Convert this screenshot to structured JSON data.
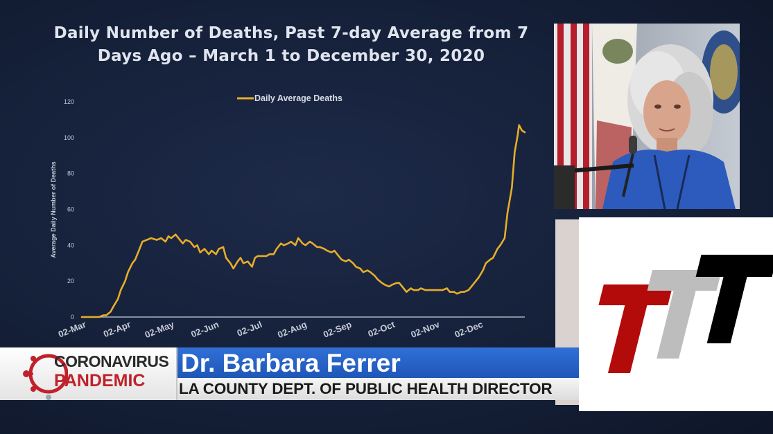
{
  "chart_data": {
    "type": "line",
    "title": "Daily Number of Deaths, Past 7-day Average from 7 Days Ago – March 1 to December 30, 2020",
    "ylabel": "Average Daily Number of Deaths",
    "xlabel": "",
    "ylim": [
      0,
      120
    ],
    "yticks": [
      "0",
      "20",
      "40",
      "60",
      "80",
      "100",
      "120"
    ],
    "xticks": [
      {
        "label": "02-Mar",
        "day": 1
      },
      {
        "label": "02-Apr",
        "day": 32
      },
      {
        "label": "02-May",
        "day": 62
      },
      {
        "label": "02-Jun",
        "day": 93
      },
      {
        "label": "02-Jul",
        "day": 123
      },
      {
        "label": "02-Aug",
        "day": 154
      },
      {
        "label": "02-Sep",
        "day": 185
      },
      {
        "label": "02-Oct",
        "day": 215
      },
      {
        "label": "02-Nov",
        "day": 246
      },
      {
        "label": "02-Dec",
        "day": 276
      }
    ],
    "grid": false,
    "legend_position": "top-center",
    "series": [
      {
        "name": "Daily Average Deaths",
        "color": "#e8ad2a",
        "x": [
          0,
          8,
          12,
          15,
          17,
          20,
          22,
          25,
          27,
          30,
          32,
          35,
          37,
          40,
          42,
          45,
          48,
          52,
          55,
          58,
          60,
          62,
          65,
          68,
          70,
          72,
          75,
          78,
          80,
          82,
          85,
          88,
          90,
          93,
          95,
          98,
          100,
          103,
          105,
          108,
          110,
          112,
          115,
          118,
          120,
          122,
          125,
          128,
          130,
          133,
          135,
          138,
          140,
          143,
          145,
          148,
          150,
          153,
          155,
          158,
          160,
          163,
          165,
          168,
          170,
          173,
          175,
          178,
          180,
          183,
          185,
          188,
          190,
          193,
          195,
          198,
          200,
          203,
          205,
          208,
          210,
          213,
          215,
          218,
          220,
          223,
          225,
          228,
          230,
          233,
          235,
          238,
          240,
          243,
          245,
          248,
          250,
          253,
          255,
          258,
          260,
          263,
          265,
          268,
          270,
          273,
          275,
          278,
          280,
          283,
          285,
          288,
          290,
          293,
          295,
          298,
          300,
          302,
          303,
          305,
          307
        ],
        "y": [
          0,
          0,
          0,
          1,
          1,
          3,
          6,
          10,
          15,
          20,
          25,
          30,
          32,
          38,
          42,
          43,
          44,
          43,
          44,
          42,
          45,
          44,
          46,
          43,
          41,
          43,
          42,
          39,
          40,
          36,
          38,
          35,
          37,
          35,
          38,
          39,
          33,
          30,
          27,
          31,
          33,
          30,
          31,
          28,
          33,
          34,
          34,
          34,
          35,
          35,
          38,
          41,
          40,
          41,
          42,
          40,
          44,
          41,
          40,
          42,
          41,
          39,
          39,
          38,
          37,
          36,
          37,
          34,
          32,
          31,
          32,
          30,
          28,
          27,
          25,
          26,
          25,
          23,
          21,
          19,
          18,
          17,
          18,
          19,
          19,
          16,
          14,
          16,
          15,
          15,
          16,
          15,
          15,
          15,
          15,
          15,
          15,
          16,
          14,
          14,
          13,
          14,
          14,
          15,
          17,
          20,
          22,
          26,
          30,
          32,
          33,
          38,
          40,
          44,
          58,
          72,
          92,
          101,
          107,
          104,
          103
        ]
      }
    ]
  },
  "broadcast": {
    "brand_line1": "CORONAVIRUS",
    "brand_line2": "PANDEMIC",
    "speaker_name": "Dr. Barbara Ferrer",
    "speaker_title": "LA COUNTY DEPT. OF PUBLIC HEALTH DIRECTOR"
  },
  "colors": {
    "line": "#e8ad2a",
    "name_bar": "#2a66cc",
    "brand_red": "#c0212a",
    "logo_red": "#b30a0a",
    "logo_grey": "#bdbdbd",
    "logo_black": "#000000"
  }
}
